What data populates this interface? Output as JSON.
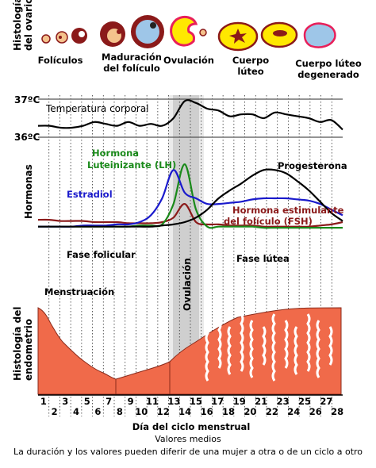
{
  "row_labels": {
    "ovary": [
      "Histología",
      "del ovario"
    ],
    "hormones": "Hormonas",
    "endometrium": [
      "Histología del",
      "endometrio"
    ]
  },
  "ovary_stages": [
    [
      "Folículos"
    ],
    [
      "Maduración",
      "del folículo"
    ],
    [
      "Ovulación"
    ],
    [
      "Cuerpo",
      "lúteo"
    ],
    [
      "Cuerpo lúteo",
      "degenerado"
    ]
  ],
  "temperature": {
    "label": "Temperatura corporal",
    "top_label": "37ºC",
    "bottom_label": "36ºC"
  },
  "hormone_labels": {
    "lh": [
      "Hormona",
      "Luteinizante (LH)"
    ],
    "estradiol": "Estradiol",
    "progesterone": "Progesterona",
    "fsh": [
      "Hormona estimulante",
      "del folículo (FSH)"
    ]
  },
  "phases": {
    "follicular": "Fase folicular",
    "luteal": "Fase lútea",
    "ovulation": "Ovulación",
    "menstruation": "Menstruación"
  },
  "days": [
    "1",
    "2",
    "3",
    "4",
    "5",
    "6",
    "7",
    "8",
    "9",
    "10",
    "11",
    "12",
    "13",
    "14",
    "15",
    "16",
    "17",
    "18",
    "19",
    "20",
    "21",
    "22",
    "23",
    "24",
    "25",
    "26",
    "27",
    "28"
  ],
  "x_axis_label": "Día del ciclo menstrual",
  "footer": {
    "line1": "Valores medios",
    "line2": "La duración y los valores pueden diferir de una mujer a otra o de un ciclo a otro"
  },
  "colors": {
    "lh": "#1a8a1a",
    "estradiol": "#1a1acc",
    "progesterone": "#000000",
    "fsh": "#8b1a1a",
    "endometrium": "#f06a4a",
    "ovulation_band": "#bbbbbb",
    "follicle_fill": "#f4c28c",
    "corpus_luteum": "#ffe800"
  },
  "chart_data": {
    "type": "line",
    "x_label": "Día del ciclo menstrual",
    "x": [
      1,
      2,
      3,
      4,
      5,
      6,
      7,
      8,
      9,
      10,
      11,
      12,
      13,
      14,
      15,
      16,
      17,
      18,
      19,
      20,
      21,
      22,
      23,
      24,
      25,
      26,
      27,
      28
    ],
    "series": [
      {
        "name": "Temperatura corporal",
        "values": [
          36.3,
          36.3,
          36.25,
          36.25,
          36.3,
          36.4,
          36.35,
          36.3,
          36.4,
          36.3,
          36.35,
          36.3,
          36.5,
          36.95,
          36.9,
          36.75,
          36.7,
          36.55,
          36.6,
          36.6,
          36.5,
          36.65,
          36.6,
          36.55,
          36.5,
          36.4,
          36.45,
          36.2
        ]
      },
      {
        "name": "Hormona Luteinizante (LH)",
        "values": [
          10,
          10,
          10,
          10,
          10,
          10,
          10,
          10,
          10,
          11,
          11,
          12,
          30,
          65,
          25,
          10,
          10,
          10,
          10,
          10,
          9,
          9,
          9,
          9,
          9,
          9,
          9,
          9
        ]
      },
      {
        "name": "Estradiol",
        "values": [
          10,
          10,
          10,
          10,
          11,
          11,
          11,
          12,
          12,
          14,
          20,
          35,
          60,
          40,
          35,
          30,
          30,
          31,
          32,
          34,
          35,
          35,
          35,
          34,
          33,
          30,
          25,
          20
        ]
      },
      {
        "name": "Progesterona",
        "values": [
          10,
          10,
          10,
          10,
          10,
          10,
          10,
          10,
          10,
          10,
          10,
          11,
          12,
          14,
          18,
          25,
          35,
          42,
          48,
          55,
          60,
          60,
          57,
          50,
          42,
          32,
          22,
          15
        ]
      },
      {
        "name": "Hormona estimulante del folículo (FSH)",
        "values": [
          16,
          16,
          15,
          15,
          15,
          14,
          14,
          14,
          13,
          13,
          13,
          14,
          18,
          30,
          14,
          12,
          12,
          11,
          11,
          11,
          10,
          10,
          10,
          10,
          10,
          11,
          12,
          14
        ]
      }
    ]
  }
}
